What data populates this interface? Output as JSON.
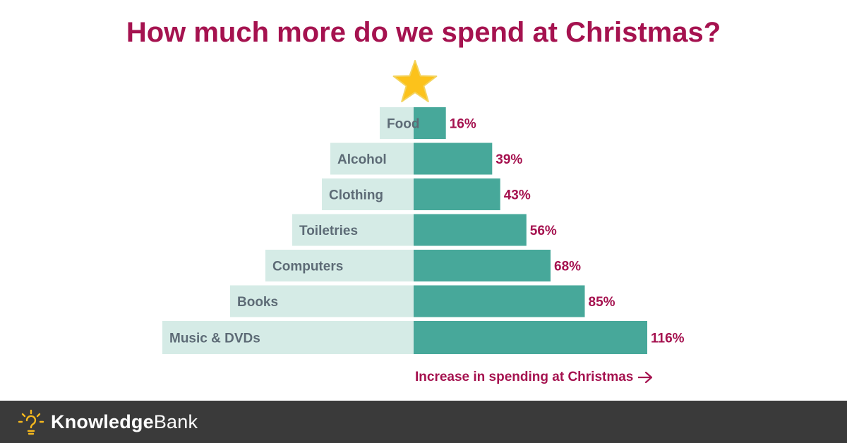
{
  "header": {
    "title": "How much more do we spend at Christmas?"
  },
  "chart_data": {
    "type": "bar",
    "orientation": "horizontal",
    "categories": [
      "Food",
      "Alcohol",
      "Clothing",
      "Toiletries",
      "Computers",
      "Books",
      "Music & DVDs"
    ],
    "values": [
      16,
      39,
      43,
      56,
      68,
      85,
      116
    ],
    "value_labels": [
      "16%",
      "39%",
      "43%",
      "56%",
      "68%",
      "85%",
      "116%"
    ],
    "title": "How much more do we spend at Christmas?",
    "xlabel": "Increase in spending at Christmas",
    "ylabel": "",
    "xlim": [
      0,
      116
    ],
    "grid": false,
    "legend": "none"
  },
  "colors": {
    "title": "#a5124f",
    "bar": "#47a89a",
    "label_background": "#d5ebe6",
    "category_text": "#5d6b76",
    "value_text": "#a5124f",
    "star_fill": "#fcc21b",
    "star_stroke": "#f3d35d",
    "footer_background": "#3a3a3a",
    "footer_icon": "#f5b81e"
  },
  "icons": {
    "top": "star-icon",
    "axis": "arrow-right-icon",
    "brand": "lightbulb-icon"
  },
  "footer": {
    "brand_bold": "Knowledge",
    "brand_regular": "Bank"
  }
}
